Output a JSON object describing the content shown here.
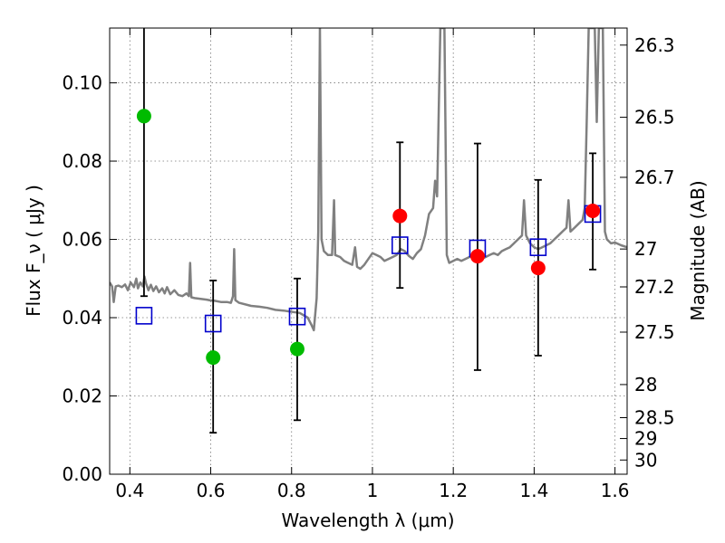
{
  "chart_data": {
    "type": "scatter",
    "title": "",
    "xlabel": "Wavelength  λ (μm)",
    "ylabel": "Flux  F_ν  ( μJy )",
    "ylabel_right": "Magnitude (AB)",
    "xlim": [
      0.35,
      1.63
    ],
    "ylim": [
      0,
      0.114
    ],
    "grid": true,
    "x_ticks": [
      {
        "value": 0.4,
        "label": "0.4"
      },
      {
        "value": 0.6,
        "label": "0.6"
      },
      {
        "value": 0.8,
        "label": "0.8"
      },
      {
        "value": 1.0,
        "label": "1"
      },
      {
        "value": 1.2,
        "label": "1.2"
      },
      {
        "value": 1.4,
        "label": "1.4"
      },
      {
        "value": 1.6,
        "label": "1.6"
      }
    ],
    "y_ticks": [
      {
        "value": 0.0,
        "label": "0.00"
      },
      {
        "value": 0.02,
        "label": "0.02"
      },
      {
        "value": 0.04,
        "label": "0.04"
      },
      {
        "value": 0.06,
        "label": "0.06"
      },
      {
        "value": 0.08,
        "label": "0.08"
      },
      {
        "value": 0.1,
        "label": "0.10"
      }
    ],
    "mag_ticks": [
      {
        "mag": 26.3,
        "label": "26.3"
      },
      {
        "mag": 26.5,
        "label": "26.5"
      },
      {
        "mag": 26.7,
        "label": "26.7"
      },
      {
        "mag": 27.0,
        "label": "27"
      },
      {
        "mag": 27.2,
        "label": "27.2"
      },
      {
        "mag": 27.5,
        "label": "27.5"
      },
      {
        "mag": 28.0,
        "label": "28"
      },
      {
        "mag": 28.5,
        "label": "28.5"
      },
      {
        "mag": 29.0,
        "label": "29"
      },
      {
        "mag": 30.0,
        "label": "30"
      }
    ],
    "colors": {
      "model": "#808080",
      "model_flux": "#0000cc",
      "detected": "#ff0000",
      "upper_limit": "#00bb00",
      "errorbar": "#000000",
      "grid": "#777777"
    },
    "model_flux_points": [
      {
        "x": 0.435,
        "y": 0.0405
      },
      {
        "x": 0.606,
        "y": 0.0385
      },
      {
        "x": 0.814,
        "y": 0.0403
      },
      {
        "x": 1.068,
        "y": 0.0585
      },
      {
        "x": 1.26,
        "y": 0.0577
      },
      {
        "x": 1.41,
        "y": 0.058
      },
      {
        "x": 1.545,
        "y": 0.0665
      }
    ],
    "green_points": [
      {
        "x": 0.435,
        "y": 0.0915,
        "err_low": 0.0455,
        "err_high": 0.114
      },
      {
        "x": 0.606,
        "y": 0.0298,
        "err_low": 0.0106,
        "err_high": 0.0495
      },
      {
        "x": 0.814,
        "y": 0.032,
        "err_low": 0.0138,
        "err_high": 0.05
      }
    ],
    "red_points": [
      {
        "x": 1.068,
        "y": 0.066,
        "err_low": 0.0476,
        "err_high": 0.0848
      },
      {
        "x": 1.26,
        "y": 0.0557,
        "err_low": 0.0266,
        "err_high": 0.0845
      },
      {
        "x": 1.41,
        "y": 0.0527,
        "err_low": 0.0303,
        "err_high": 0.0752
      },
      {
        "x": 1.545,
        "y": 0.0673,
        "err_low": 0.0523,
        "err_high": 0.082
      }
    ],
    "model_spectrum": [
      [
        0.35,
        0.049
      ],
      [
        0.356,
        0.048
      ],
      [
        0.36,
        0.044
      ],
      [
        0.365,
        0.048
      ],
      [
        0.372,
        0.0482
      ],
      [
        0.38,
        0.0478
      ],
      [
        0.388,
        0.0485
      ],
      [
        0.395,
        0.047
      ],
      [
        0.402,
        0.049
      ],
      [
        0.41,
        0.0478
      ],
      [
        0.416,
        0.05
      ],
      [
        0.42,
        0.0475
      ],
      [
        0.426,
        0.049
      ],
      [
        0.432,
        0.048
      ],
      [
        0.436,
        0.0505
      ],
      [
        0.44,
        0.0488
      ],
      [
        0.446,
        0.047
      ],
      [
        0.452,
        0.0484
      ],
      [
        0.458,
        0.0468
      ],
      [
        0.465,
        0.048
      ],
      [
        0.472,
        0.0465
      ],
      [
        0.48,
        0.0475
      ],
      [
        0.486,
        0.0462
      ],
      [
        0.492,
        0.0478
      ],
      [
        0.5,
        0.046
      ],
      [
        0.51,
        0.047
      ],
      [
        0.52,
        0.0458
      ],
      [
        0.53,
        0.0455
      ],
      [
        0.54,
        0.0462
      ],
      [
        0.546,
        0.0455
      ],
      [
        0.549,
        0.054
      ],
      [
        0.552,
        0.0452
      ],
      [
        0.56,
        0.045
      ],
      [
        0.575,
        0.0448
      ],
      [
        0.59,
        0.0446
      ],
      [
        0.6,
        0.0444
      ],
      [
        0.61,
        0.0443
      ],
      [
        0.625,
        0.044
      ],
      [
        0.64,
        0.044
      ],
      [
        0.65,
        0.0438
      ],
      [
        0.655,
        0.0455
      ],
      [
        0.658,
        0.0575
      ],
      [
        0.661,
        0.0445
      ],
      [
        0.67,
        0.0438
      ],
      [
        0.7,
        0.043
      ],
      [
        0.72,
        0.0428
      ],
      [
        0.74,
        0.0425
      ],
      [
        0.76,
        0.042
      ],
      [
        0.78,
        0.0418
      ],
      [
        0.8,
        0.0415
      ],
      [
        0.82,
        0.0412
      ],
      [
        0.84,
        0.04
      ],
      [
        0.85,
        0.038
      ],
      [
        0.855,
        0.0368
      ],
      [
        0.862,
        0.045
      ],
      [
        0.866,
        0.062
      ],
      [
        0.87,
        0.114
      ],
      [
        0.874,
        0.06
      ],
      [
        0.88,
        0.057
      ],
      [
        0.89,
        0.056
      ],
      [
        0.9,
        0.056
      ],
      [
        0.905,
        0.07
      ],
      [
        0.908,
        0.056
      ],
      [
        0.92,
        0.0555
      ],
      [
        0.93,
        0.0545
      ],
      [
        0.94,
        0.054
      ],
      [
        0.95,
        0.0535
      ],
      [
        0.957,
        0.058
      ],
      [
        0.962,
        0.053
      ],
      [
        0.97,
        0.0525
      ],
      [
        0.98,
        0.0535
      ],
      [
        0.99,
        0.055
      ],
      [
        1.0,
        0.0565
      ],
      [
        1.01,
        0.056
      ],
      [
        1.02,
        0.0555
      ],
      [
        1.03,
        0.0545
      ],
      [
        1.04,
        0.055
      ],
      [
        1.05,
        0.0555
      ],
      [
        1.06,
        0.056
      ],
      [
        1.07,
        0.0575
      ],
      [
        1.08,
        0.057
      ],
      [
        1.09,
        0.0558
      ],
      [
        1.1,
        0.055
      ],
      [
        1.11,
        0.0565
      ],
      [
        1.12,
        0.0575
      ],
      [
        1.13,
        0.061
      ],
      [
        1.14,
        0.0665
      ],
      [
        1.15,
        0.068
      ],
      [
        1.155,
        0.075
      ],
      [
        1.16,
        0.071
      ],
      [
        1.168,
        0.114
      ],
      [
        1.178,
        0.114
      ],
      [
        1.184,
        0.056
      ],
      [
        1.19,
        0.054
      ],
      [
        1.2,
        0.0545
      ],
      [
        1.21,
        0.055
      ],
      [
        1.22,
        0.0545
      ],
      [
        1.23,
        0.055
      ],
      [
        1.24,
        0.0555
      ],
      [
        1.25,
        0.056
      ],
      [
        1.26,
        0.0555
      ],
      [
        1.27,
        0.055
      ],
      [
        1.28,
        0.0555
      ],
      [
        1.29,
        0.056
      ],
      [
        1.3,
        0.0565
      ],
      [
        1.31,
        0.056
      ],
      [
        1.32,
        0.057
      ],
      [
        1.33,
        0.0575
      ],
      [
        1.34,
        0.058
      ],
      [
        1.35,
        0.059
      ],
      [
        1.36,
        0.06
      ],
      [
        1.37,
        0.061
      ],
      [
        1.375,
        0.07
      ],
      [
        1.38,
        0.061
      ],
      [
        1.39,
        0.059
      ],
      [
        1.4,
        0.058
      ],
      [
        1.41,
        0.0575
      ],
      [
        1.42,
        0.058
      ],
      [
        1.43,
        0.0585
      ],
      [
        1.44,
        0.059
      ],
      [
        1.45,
        0.06
      ],
      [
        1.46,
        0.061
      ],
      [
        1.47,
        0.062
      ],
      [
        1.48,
        0.063
      ],
      [
        1.485,
        0.07
      ],
      [
        1.49,
        0.062
      ],
      [
        1.5,
        0.063
      ],
      [
        1.51,
        0.064
      ],
      [
        1.52,
        0.065
      ],
      [
        1.525,
        0.068
      ],
      [
        1.53,
        0.09
      ],
      [
        1.535,
        0.114
      ],
      [
        1.55,
        0.114
      ],
      [
        1.555,
        0.09
      ],
      [
        1.56,
        0.114
      ],
      [
        1.57,
        0.114
      ],
      [
        1.575,
        0.062
      ],
      [
        1.58,
        0.06
      ],
      [
        1.59,
        0.059
      ],
      [
        1.6,
        0.0592
      ],
      [
        1.615,
        0.0585
      ],
      [
        1.63,
        0.058
      ]
    ]
  }
}
